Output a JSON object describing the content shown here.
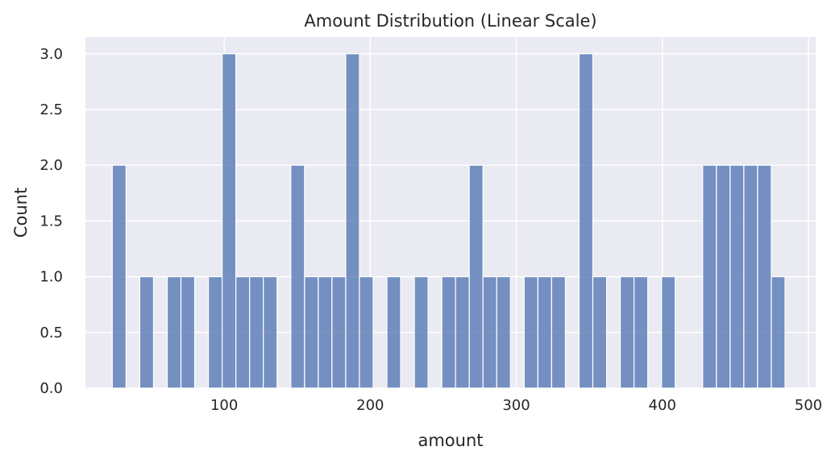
{
  "chart_data": {
    "type": "bar",
    "title": "Amount Distribution (Linear Scale)",
    "xlabel": "amount",
    "ylabel": "Count",
    "xlim": [
      5,
      505
    ],
    "ylim": [
      0,
      3.15
    ],
    "xticks": [
      100,
      200,
      300,
      400,
      500
    ],
    "yticks": [
      0.0,
      0.5,
      1.0,
      1.5,
      2.0,
      2.5,
      3.0
    ],
    "ytick_labels": [
      "0.0",
      "0.5",
      "1.0",
      "1.5",
      "2.0",
      "2.5",
      "3.0"
    ],
    "grid": true,
    "bin_start": 23.4,
    "bin_width": 9.4,
    "counts": [
      2,
      0,
      1,
      0,
      1,
      1,
      0,
      1,
      3,
      1,
      1,
      1,
      0,
      2,
      1,
      1,
      1,
      3,
      1,
      0,
      1,
      0,
      1,
      0,
      1,
      1,
      2,
      1,
      1,
      0,
      1,
      1,
      1,
      0,
      3,
      1,
      0,
      1,
      1,
      0,
      1,
      0,
      0,
      2,
      2,
      2,
      2,
      2,
      1
    ],
    "colors": {
      "bar": "#4c72b0",
      "background": "#eaeaf2",
      "grid": "#ffffff"
    }
  }
}
